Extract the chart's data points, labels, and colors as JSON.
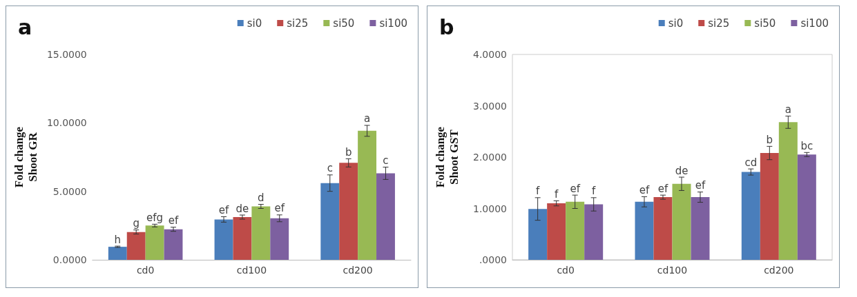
{
  "chart_data": [
    {
      "type": "bar",
      "title": "a",
      "ylabel": "Fold change\nShoot GR",
      "categories": [
        "cd0",
        "cd100",
        "cd200"
      ],
      "ylim": [
        0,
        15
      ],
      "yticks": [
        {
          "value": 0,
          "label": "0.0000"
        },
        {
          "value": 5,
          "label": "5.0000"
        },
        {
          "value": 10,
          "label": "10.0000"
        },
        {
          "value": 15,
          "label": "15.0000"
        }
      ],
      "legend": "top right",
      "series": [
        {
          "name": "si0",
          "color": "#4a7ebb",
          "values": [
            0.95,
            2.95,
            5.6
          ],
          "errors": [
            0.05,
            0.2,
            0.6
          ],
          "value_labels": [
            "h",
            "ef",
            "c"
          ]
        },
        {
          "name": "si25",
          "color": "#be4b48",
          "values": [
            2.03,
            3.12,
            7.08
          ],
          "errors": [
            0.15,
            0.15,
            0.3
          ],
          "value_labels": [
            "g",
            "de",
            "b"
          ]
        },
        {
          "name": "si50",
          "color": "#98b954",
          "values": [
            2.5,
            3.9,
            9.42
          ],
          "errors": [
            0.1,
            0.15,
            0.4
          ],
          "value_labels": [
            "efg",
            "d",
            "a"
          ]
        },
        {
          "name": "si100",
          "color": "#7d60a0",
          "values": [
            2.23,
            3.03,
            6.32
          ],
          "errors": [
            0.15,
            0.25,
            0.45
          ],
          "value_labels": [
            "ef",
            "ef",
            "c"
          ]
        }
      ]
    },
    {
      "type": "bar",
      "title": "b",
      "ylabel": "Fold change\nShoot GST",
      "categories": [
        "cd0",
        "cd100",
        "cd200"
      ],
      "ylim": [
        0,
        4
      ],
      "yticks": [
        {
          "value": 0,
          "label": ".0000"
        },
        {
          "value": 1,
          "label": "1.0000"
        },
        {
          "value": 2,
          "label": "2.0000"
        },
        {
          "value": 3,
          "label": "3.0000"
        },
        {
          "value": 4,
          "label": "4.0000"
        }
      ],
      "legend": "top right",
      "series": [
        {
          "name": "si0",
          "color": "#4a7ebb",
          "values": [
            0.99,
            1.13,
            1.71
          ],
          "errors": [
            0.22,
            0.1,
            0.06
          ],
          "value_labels": [
            "f",
            "ef",
            "cd"
          ]
        },
        {
          "name": "si25",
          "color": "#be4b48",
          "values": [
            1.1,
            1.22,
            2.08
          ],
          "errors": [
            0.05,
            0.04,
            0.13
          ],
          "value_labels": [
            "f",
            "ef",
            "b"
          ]
        },
        {
          "name": "si50",
          "color": "#98b954",
          "values": [
            1.13,
            1.48,
            2.68
          ],
          "errors": [
            0.13,
            0.13,
            0.12
          ],
          "value_labels": [
            "ef",
            "de",
            "a"
          ]
        },
        {
          "name": "si100",
          "color": "#7d60a0",
          "values": [
            1.08,
            1.22,
            2.05
          ],
          "errors": [
            0.13,
            0.1,
            0.04
          ],
          "value_labels": [
            "f",
            "ef",
            "bc"
          ]
        }
      ]
    }
  ]
}
